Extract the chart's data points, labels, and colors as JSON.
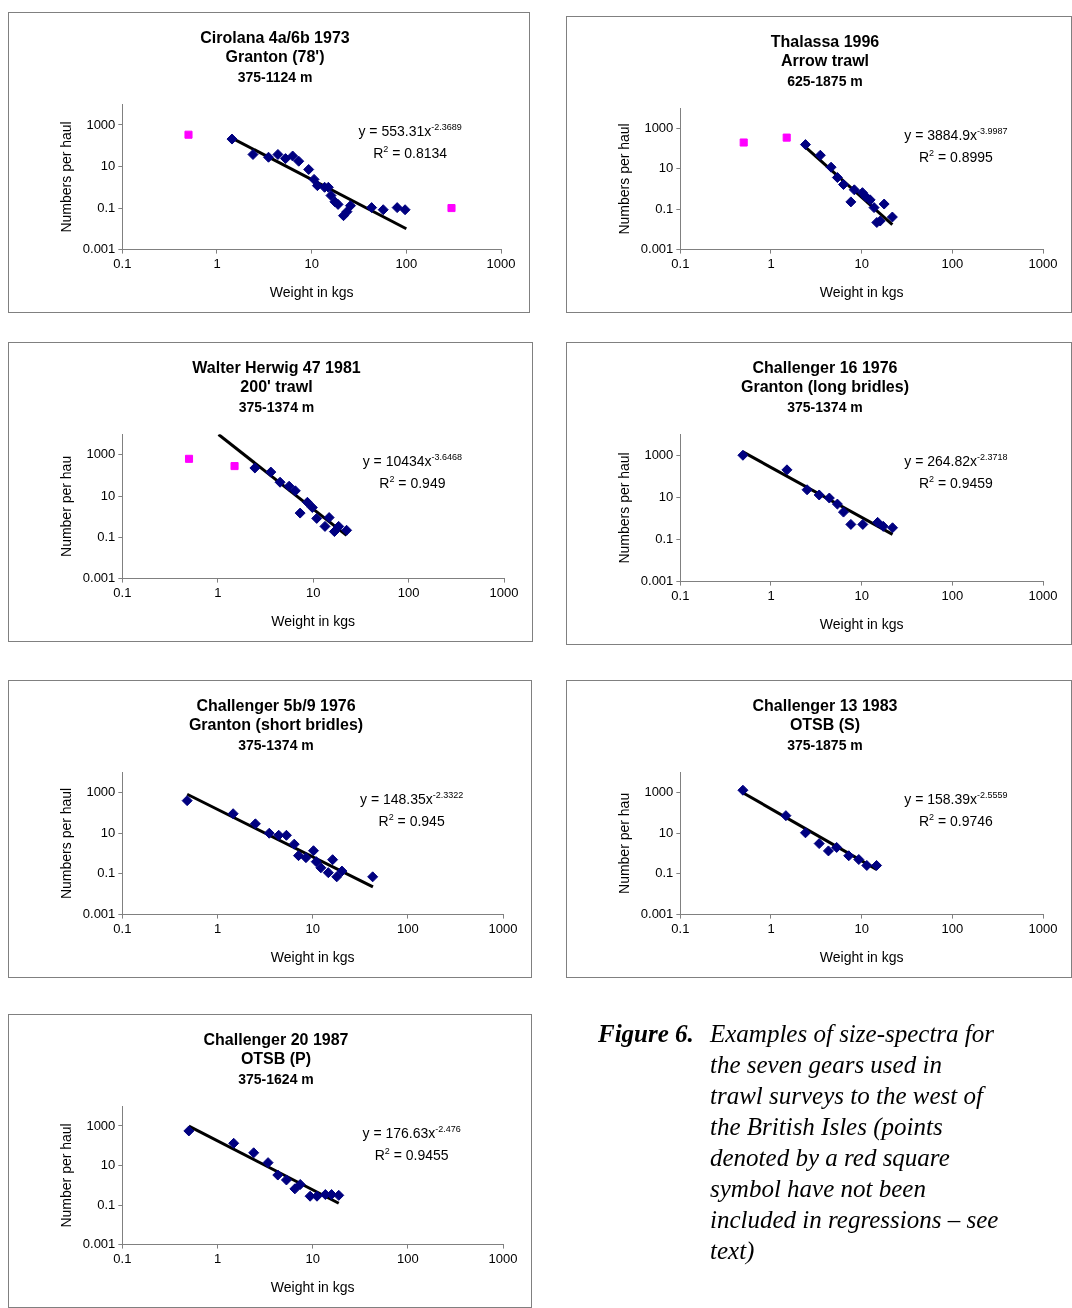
{
  "chart_data": [
    {
      "type": "scatter",
      "title": "Cirolana 4a/6b 1973\nGranton (78')",
      "subtitle": "375-1124 m",
      "xlabel": "Weight in kgs",
      "ylabel": "Numbers per haul",
      "annotations": [
        "y = 553.31x$^{-2.3689}$",
        "R$^{2}$ = 0.8134"
      ],
      "log": "xy",
      "xlim": [
        0.1,
        1000
      ],
      "xticks": [
        0.1,
        1,
        10,
        100,
        1000
      ],
      "ylim": [
        0.001,
        10000
      ],
      "yticks": [
        0.001,
        0.1,
        10,
        1000
      ],
      "series": [
        {
          "type": "scatter",
          "color": "#000080",
          "marker": "diamond",
          "x": [
            1.44,
            2.4,
            3.5,
            4.4,
            5.3,
            6.3,
            7.3,
            9.0,
            9.3,
            10.6,
            11.5,
            13.7,
            15,
            16,
            17.6,
            19,
            21.7,
            23.6,
            25.7,
            43,
            57,
            80,
            97
          ],
          "values": [
            210,
            38,
            28,
            38,
            24,
            32,
            18,
            null,
            7.2,
            2.4,
            1.2,
            1.0,
            1.0,
            0.4,
            0.2,
            0.15,
            0.043,
            0.067,
            0.13,
            0.105,
            0.083,
            0.105,
            0.083
          ]
        },
        {
          "type": "scatter",
          "color": "#ff00ff",
          "marker": "square",
          "x": [
            0.5,
            300
          ],
          "values": [
            340,
            0.1
          ]
        },
        {
          "type": "line",
          "color": "#000000",
          "marker": "none",
          "x": [
            1.44,
            100
          ],
          "values": [
            233,
            0.0101
          ]
        }
      ]
    },
    {
      "type": "scatter",
      "title": "Thalassa 1996\nArrow trawl",
      "subtitle": "625-1875 m",
      "xlabel": "Weight in kgs",
      "ylabel": "Numbers per haul",
      "annotations": [
        "y = 3884.9x$^{-3.9987}$",
        "R$^{2}$ = 0.8995"
      ],
      "log": "xy",
      "xlim": [
        0.1,
        1000
      ],
      "xticks": [
        0.1,
        1,
        10,
        100,
        1000
      ],
      "ylim": [
        0.001,
        10000
      ],
      "yticks": [
        0.001,
        0.1,
        10,
        1000
      ],
      "series": [
        {
          "type": "scatter",
          "color": "#000080",
          "marker": "diamond",
          "x": [
            2.4,
            3.5,
            4.6,
            5.4,
            6.3,
            7.6,
            8.3,
            10.2,
            11.1,
            12.4,
            13.7,
            14.7,
            16,
            17.7,
            21.8
          ],
          "values": [
            158,
            47,
            12,
            3.7,
            1.67,
            0.23,
            0.91,
            0.66,
            0.42,
            0.29,
            0.12,
            0.022,
            0.026,
            0.18,
            0.041
          ]
        },
        {
          "type": "scatter",
          "color": "#ff00ff",
          "marker": "square",
          "x": [
            0.5,
            1.49
          ],
          "values": [
            200,
            350
          ]
        },
        {
          "type": "line",
          "color": "#000000",
          "marker": "none",
          "x": [
            2.4,
            21.8
          ],
          "values": [
            117,
            0.0172
          ]
        }
      ]
    },
    {
      "type": "scatter",
      "title": "Walter Herwig 47 1981\n200' trawl",
      "subtitle": "375-1374 m",
      "xlabel": "Weight in kgs",
      "ylabel": "Number per hau",
      "annotations": [
        "y = 10434x$^{-3.6468}$",
        "R$^{2}$ = 0.949"
      ],
      "log": "xy",
      "xlim": [
        0.1,
        1000
      ],
      "xticks": [
        0.1,
        1,
        10,
        100,
        1000
      ],
      "ylim": [
        0.001,
        10000
      ],
      "yticks": [
        0.001,
        0.1,
        10,
        1000
      ],
      "series": [
        {
          "type": "scatter",
          "color": "#000080",
          "marker": "diamond",
          "x": [
            2.45,
            3.6,
            4.5,
            5.6,
            6.5,
            7.3,
            8.7,
            9.8,
            10.9,
            13.3,
            14.7,
            16.7,
            18.5,
            22.4
          ],
          "values": [
            230,
            146,
            47,
            30,
            18,
            1.5,
            5,
            2.8,
            0.83,
            0.34,
            0.91,
            0.19,
            0.34,
            0.22
          ]
        },
        {
          "type": "scatter",
          "color": "#ff00ff",
          "marker": "square",
          "x": [
            0.5,
            1.5
          ],
          "values": [
            640,
            285
          ]
        },
        {
          "type": "line",
          "color": "#000000",
          "marker": "none",
          "x": [
            1.02,
            22.4
          ],
          "values": [
            9700,
            0.124
          ]
        }
      ]
    },
    {
      "type": "scatter",
      "title": "Challenger 16 1976\nGranton (long bridles)",
      "subtitle": "375-1374 m",
      "xlabel": "Weight in kgs",
      "ylabel": "Numbers per haul",
      "annotations": [
        "y = 264.82x$^{-2.3718}$",
        "R$^{2}$ = 0.9459"
      ],
      "log": "xy",
      "xlim": [
        0.1,
        1000
      ],
      "xticks": [
        0.1,
        1,
        10,
        100,
        1000
      ],
      "ylim": [
        0.001,
        10000
      ],
      "yticks": [
        0.001,
        0.1,
        10,
        1000
      ],
      "series": [
        {
          "type": "scatter",
          "color": "#000080",
          "marker": "diamond",
          "x": [
            0.49,
            1.5,
            2.5,
            3.4,
            4.4,
            5.4,
            6.3,
            7.6,
            10.3,
            15,
            17.3,
            21.9
          ],
          "values": [
            1000,
            203,
            23,
            13,
            9.3,
            4.8,
            2.0,
            0.52,
            0.52,
            0.65,
            0.42,
            0.36
          ]
        },
        {
          "type": "line",
          "color": "#000000",
          "marker": "none",
          "x": [
            0.49,
            21.9
          ],
          "values": [
            1438,
            0.175
          ]
        }
      ]
    },
    {
      "type": "scatter",
      "title": "Challenger 5b/9 1976\nGranton (short bridles)",
      "subtitle": "375-1374 m",
      "xlabel": "Weight in kgs",
      "ylabel": "Numbers per haul",
      "annotations": [
        "y = 148.35x$^{-2.3322}$",
        "R$^{2}$ = 0.945"
      ],
      "log": "xy",
      "xlim": [
        0.1,
        1000
      ],
      "xticks": [
        0.1,
        1,
        10,
        100,
        1000
      ],
      "ylim": [
        0.001,
        10000
      ],
      "yticks": [
        0.001,
        0.1,
        10,
        1000
      ],
      "series": [
        {
          "type": "scatter",
          "color": "#000080",
          "marker": "diamond",
          "x": [
            0.48,
            1.46,
            2.5,
            3.5,
            4.4,
            5.3,
            6.4,
            7.1,
            8.5,
            10.2,
            10.9,
            12.2,
            14.6,
            16.2,
            17.9,
            20.3,
            42.7
          ],
          "values": [
            400,
            91,
            29,
            10,
            7.9,
            7.9,
            2.9,
            0.79,
            0.63,
            1.38,
            0.4,
            0.2,
            0.115,
            0.5,
            0.072,
            0.138,
            0.072
          ]
        },
        {
          "type": "line",
          "color": "#000000",
          "marker": "none",
          "x": [
            0.48,
            43
          ],
          "values": [
            822,
            0.023
          ]
        }
      ]
    },
    {
      "type": "scatter",
      "title": "Challenger 13 1983\nOTSB (S)",
      "subtitle": "375-1875 m",
      "xlabel": "Weight in kgs",
      "ylabel": "Number per hau",
      "annotations": [
        "y = 158.39x$^{-2.5559}$",
        "R$^{2}$ = 0.9746"
      ],
      "log": "xy",
      "xlim": [
        0.1,
        1000
      ],
      "xticks": [
        0.1,
        1,
        10,
        100,
        1000
      ],
      "ylim": [
        0.001,
        10000
      ],
      "yticks": [
        0.001,
        0.1,
        10,
        1000
      ],
      "series": [
        {
          "type": "scatter",
          "color": "#000080",
          "marker": "diamond",
          "x": [
            0.49,
            1.46,
            2.4,
            3.4,
            4.3,
            5.3,
            7.2,
            9.3,
            11.4,
            13.5,
            14.6
          ],
          "values": [
            1300,
            73,
            10.5,
            3.1,
            1.35,
            2.0,
            0.78,
            0.51,
            0.26,
            null,
            0.26
          ]
        },
        {
          "type": "line",
          "color": "#000000",
          "marker": "none",
          "x": [
            0.49,
            14.6
          ],
          "values": [
            981,
            0.167
          ]
        }
      ]
    },
    {
      "type": "scatter",
      "title": "Challenger 20 1987\nOTSB (P)",
      "subtitle": "375-1624 m",
      "xlabel": "Weight in kgs",
      "ylabel": "Number per haul",
      "annotations": [
        "y = 176.63x$^{-2.476}$",
        "R$^{2}$ = 0.9455"
      ],
      "log": "xy",
      "xlim": [
        0.1,
        1000
      ],
      "xticks": [
        0.1,
        1,
        10,
        100,
        1000
      ],
      "ylim": [
        0.001,
        10000
      ],
      "yticks": [
        0.001,
        0.1,
        10,
        1000
      ],
      "series": [
        {
          "type": "scatter",
          "color": "#000080",
          "marker": "diamond",
          "x": [
            0.5,
            1.48,
            2.4,
            3.4,
            4.3,
            5.3,
            6.5,
            7.4,
            9.4,
            11.1,
            13.6,
            15.8,
            18.8
          ],
          "values": [
            560,
            133,
            44,
            14,
            3.3,
            1.86,
            0.66,
            1.1,
            0.28,
            0.28,
            0.34,
            0.34,
            0.31
          ]
        },
        {
          "type": "line",
          "color": "#000000",
          "marker": "none",
          "x": [
            0.5,
            18.8
          ],
          "values": [
            983,
            0.124
          ]
        }
      ]
    },
    {
      "type": "other",
      "title": "Figure 6.",
      "annotations": [
        "Examples of size-spectra for the seven gears used in trawl surveys to the west of the British Isles (points denoted by a red square symbol have not been included in regressions – see text)"
      ]
    }
  ]
}
